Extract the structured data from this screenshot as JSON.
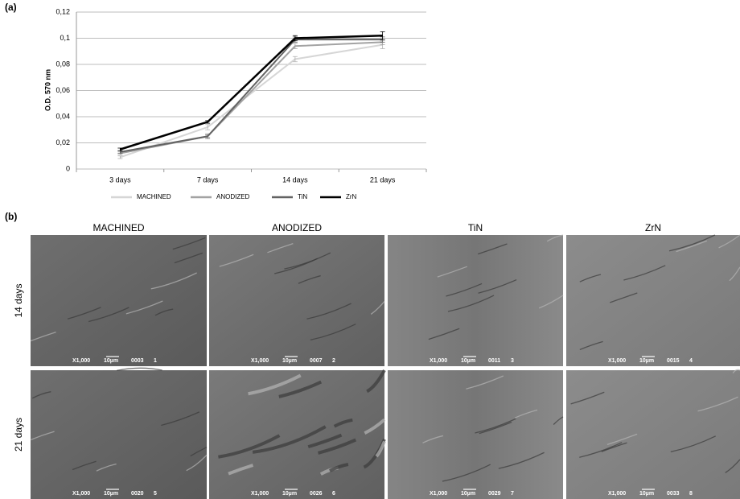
{
  "chart_data": {
    "type": "line",
    "ylabel": "O.D. 570 nm",
    "categories": [
      "3 days",
      "7 days",
      "14 days",
      "21 days"
    ],
    "ylim": [
      0,
      0.12
    ],
    "yticks": [
      0,
      {
        "value": 0.02,
        "label": "0,02"
      },
      {
        "value": 0.04,
        "label": "0,04"
      },
      {
        "value": 0.06,
        "label": "0,06"
      },
      {
        "value": 0.08,
        "label": "0,08"
      },
      {
        "value": 0.1,
        "label": "0,1"
      },
      {
        "value": 0.12,
        "label": "0,12"
      }
    ],
    "grid": true,
    "legend": "bottom",
    "series": [
      {
        "name": "MACHINED",
        "color": "#d6d6d6",
        "values": [
          0.009,
          0.032,
          0.084,
          0.095
        ],
        "errors": [
          0.001,
          0.002,
          0.002,
          0.003
        ]
      },
      {
        "name": "ANODIZED",
        "color": "#a3a3a3",
        "values": [
          0.012,
          0.025,
          0.094,
          0.097
        ],
        "errors": [
          0.001,
          0.002,
          0.002,
          0.002
        ]
      },
      {
        "name": "TiN",
        "color": "#636363",
        "values": [
          0.013,
          0.025,
          0.099,
          0.099
        ],
        "errors": [
          0.001,
          0.001,
          0.002,
          0.002
        ]
      },
      {
        "name": "ZrN",
        "color": "#000000",
        "values": [
          0.015,
          0.036,
          0.1,
          0.102
        ],
        "errors": [
          0.001,
          0.001,
          0.002,
          0.003
        ]
      }
    ]
  },
  "figure": {
    "panel_a": "(a)",
    "panel_b": "(b)",
    "columns": [
      "MACHINED",
      "ANODIZED",
      "TiN",
      "ZrN"
    ],
    "rows": [
      "14 days",
      "21 days"
    ],
    "images": [
      [
        {
          "mag": "X1,000",
          "scale": "10µm",
          "code": "0003",
          "num": "1"
        },
        {
          "mag": "X1,000",
          "scale": "10µm",
          "code": "0007",
          "num": "2"
        },
        {
          "mag": "X1,000",
          "scale": "10µm",
          "code": "0011",
          "num": "3"
        },
        {
          "mag": "X1,000",
          "scale": "10µm",
          "code": "0015",
          "num": "4"
        }
      ],
      [
        {
          "mag": "X1,000",
          "scale": "10µm",
          "code": "0020",
          "num": "5"
        },
        {
          "mag": "X1,000",
          "scale": "10µm",
          "code": "0026",
          "num": "6"
        },
        {
          "mag": "X1,000",
          "scale": "10µm",
          "code": "0029",
          "num": "7"
        },
        {
          "mag": "X1,000",
          "scale": "10µm",
          "code": "0033",
          "num": "8"
        }
      ]
    ]
  }
}
